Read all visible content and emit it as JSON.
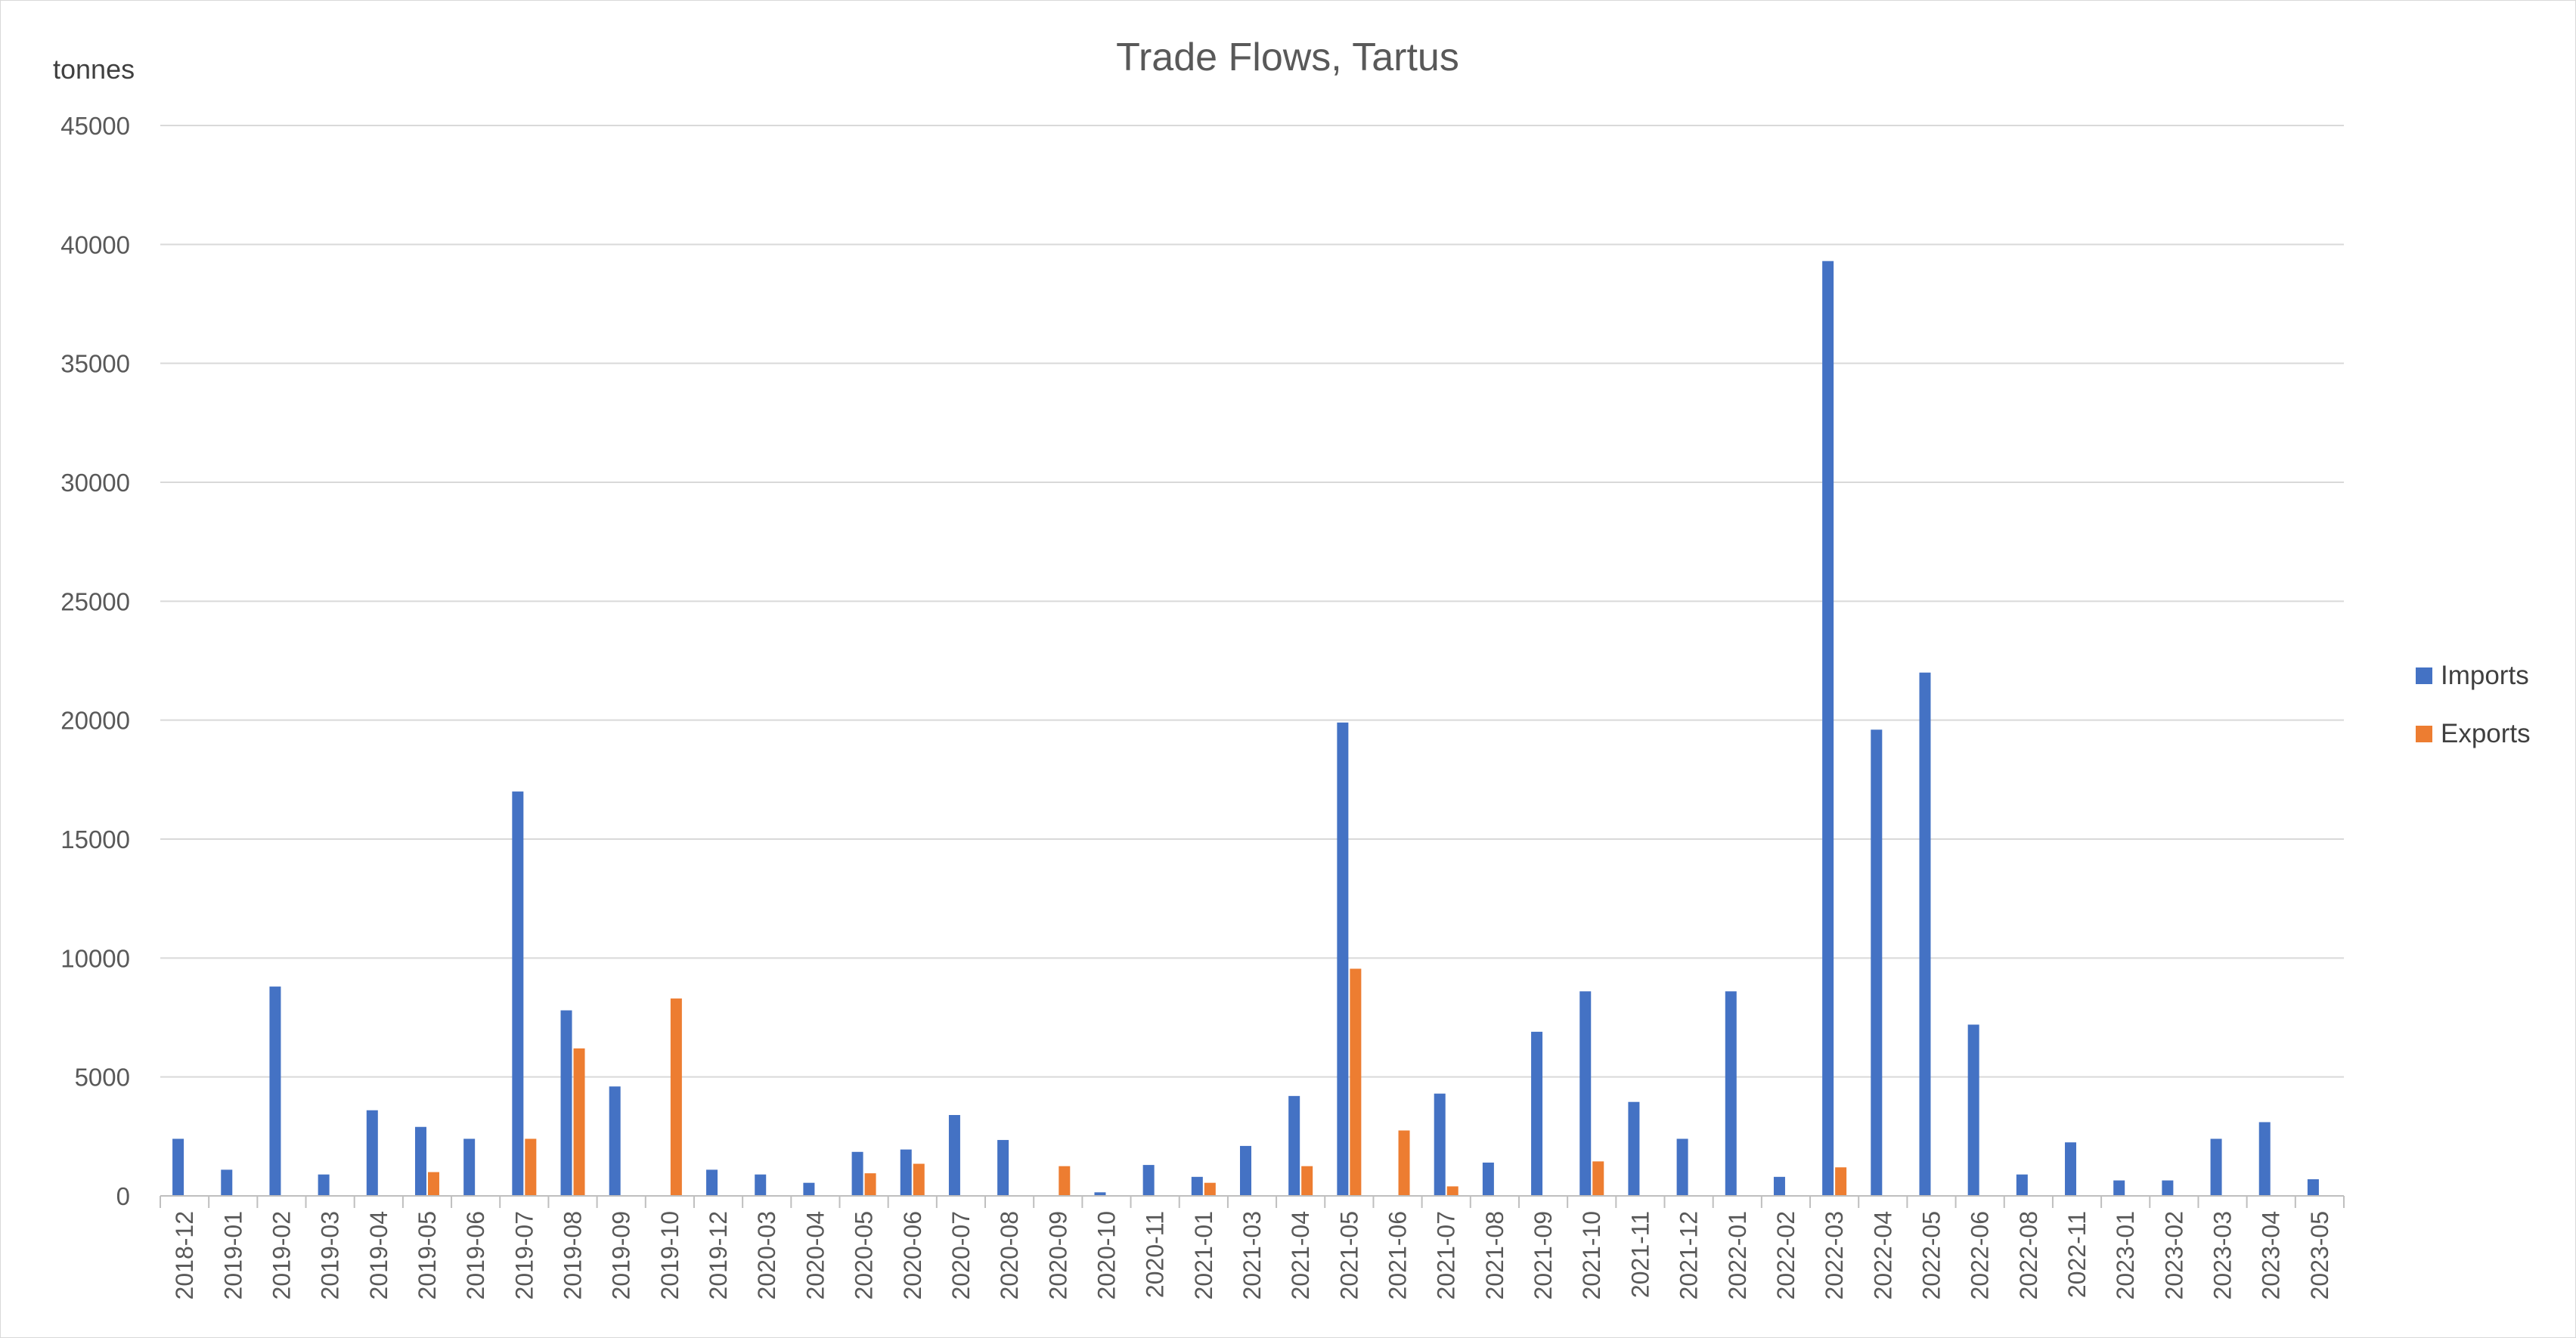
{
  "chart_data": {
    "type": "bar",
    "title": "Trade Flows, Tartus",
    "ylabel": "tonnes",
    "xlabel": "",
    "ylim": [
      0,
      45000
    ],
    "yticks": [
      0,
      5000,
      10000,
      15000,
      20000,
      25000,
      30000,
      35000,
      40000,
      45000
    ],
    "grid": true,
    "legend_position": "right",
    "categories": [
      "2018-12",
      "2019-01",
      "2019-02",
      "2019-03",
      "2019-04",
      "2019-05",
      "2019-06",
      "2019-07",
      "2019-08",
      "2019-09",
      "2019-10",
      "2019-12",
      "2020-03",
      "2020-04",
      "2020-05",
      "2020-06",
      "2020-07",
      "2020-08",
      "2020-09",
      "2020-10",
      "2020-11",
      "2021-01",
      "2021-03",
      "2021-04",
      "2021-05",
      "2021-06",
      "2021-07",
      "2021-08",
      "2021-09",
      "2021-10",
      "2021-11",
      "2021-12",
      "2022-01",
      "2022-02",
      "2022-03",
      "2022-04",
      "2022-05",
      "2022-06",
      "2022-08",
      "2022-11",
      "2023-01",
      "2023-02",
      "2023-03",
      "2023-04",
      "2023-05"
    ],
    "series": [
      {
        "name": "Imports",
        "color": "#4472C4",
        "values": [
          2400,
          1100,
          8800,
          900,
          3600,
          2900,
          2400,
          17000,
          7800,
          4600,
          0,
          1100,
          900,
          550,
          1850,
          1950,
          3400,
          2350,
          0,
          150,
          1300,
          800,
          2100,
          4200,
          19900,
          0,
          4300,
          1400,
          6900,
          8600,
          3950,
          2400,
          8600,
          800,
          39300,
          19600,
          22000,
          7200,
          900,
          2250,
          650,
          650,
          2400,
          3100,
          700
        ]
      },
      {
        "name": "Exports",
        "color": "#ED7D31",
        "values": [
          0,
          0,
          0,
          0,
          0,
          1000,
          0,
          2400,
          6200,
          0,
          8300,
          0,
          0,
          0,
          950,
          1350,
          0,
          0,
          1250,
          0,
          0,
          550,
          0,
          1250,
          9550,
          2750,
          400,
          0,
          0,
          1450,
          0,
          0,
          0,
          0,
          1200,
          0,
          0,
          0,
          0,
          0,
          0,
          0,
          0,
          0,
          0
        ]
      }
    ]
  }
}
